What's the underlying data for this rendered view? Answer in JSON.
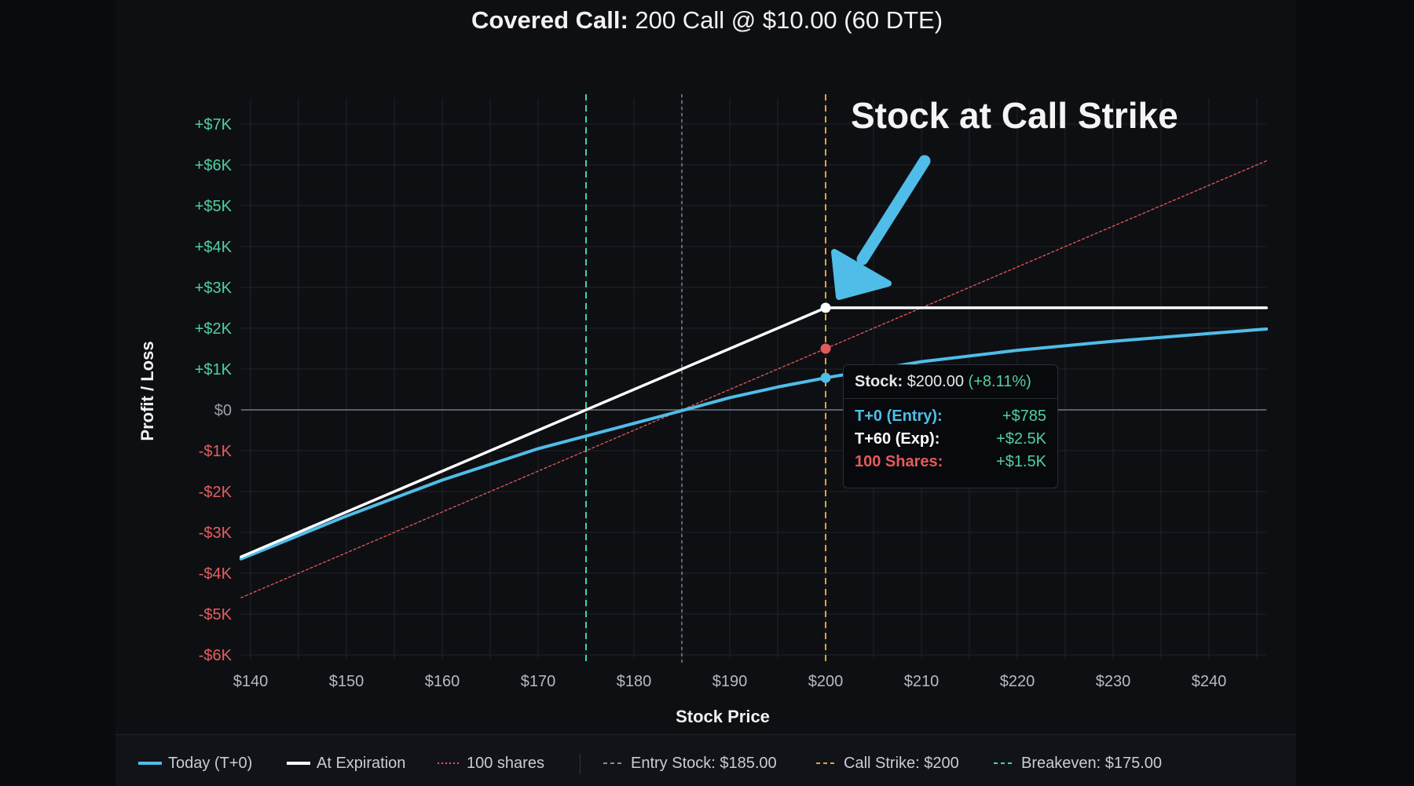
{
  "title": {
    "bold": "Covered Call:",
    "rest": "200 Call @ $10.00 (60 DTE)"
  },
  "annotation": "Stock at Call Strike",
  "colors": {
    "today": "#4fbde8",
    "expiration": "#ffffff",
    "shares": "#e45a5a",
    "entry": "#8a8d94",
    "strike": "#e0a82e",
    "breakeven": "#3dd6b0",
    "positive": "#4fd1a0",
    "negative": "#e55f5f",
    "zero": "#9aa0a6",
    "arrow": "#4fbde8"
  },
  "chart_data": {
    "type": "line",
    "xlabel": "Stock Price",
    "ylabel": "Profit / Loss",
    "xlim": [
      139,
      246
    ],
    "ylim": [
      -6000,
      7000
    ],
    "x_ticks": [
      140,
      150,
      160,
      170,
      180,
      190,
      200,
      210,
      220,
      230,
      240
    ],
    "x_tick_labels": [
      "$140",
      "$150",
      "$160",
      "$170",
      "$180",
      "$190",
      "$200",
      "$210",
      "$220",
      "$230",
      "$240"
    ],
    "y_ticks": [
      7000,
      6000,
      5000,
      4000,
      3000,
      2000,
      1000,
      0,
      -1000,
      -2000,
      -3000,
      -4000,
      -5000,
      -6000
    ],
    "y_tick_labels": [
      "+$7K",
      "+$6K",
      "+$5K",
      "+$4K",
      "+$3K",
      "+$2K",
      "+$1K",
      "$0",
      "-$1K",
      "-$2K",
      "-$3K",
      "-$4K",
      "-$5K",
      "-$6K"
    ],
    "grid": true,
    "series": [
      {
        "name": "Today (T+0)",
        "x": [
          139,
          150,
          160,
          170,
          175,
          180,
          185,
          190,
          195,
          200,
          210,
          220,
          230,
          240,
          246
        ],
        "y": [
          -3650,
          -2600,
          -1720,
          -950,
          -640,
          -330,
          -20,
          300,
          560,
          785,
          1180,
          1460,
          1680,
          1870,
          1980
        ]
      },
      {
        "name": "At Expiration",
        "x": [
          139,
          200,
          246
        ],
        "y": [
          -3600,
          2500,
          2500
        ]
      },
      {
        "name": "100 shares",
        "x": [
          139,
          246
        ],
        "y": [
          -4600,
          6100
        ]
      }
    ],
    "vlines": [
      {
        "name": "Entry Stock: $185.00",
        "x": 185
      },
      {
        "name": "Call Strike: $200",
        "x": 200
      },
      {
        "name": "Breakeven: $175.00",
        "x": 175
      }
    ],
    "markers": [
      {
        "series": "At Expiration",
        "x": 200,
        "y": 2500
      },
      {
        "series": "100 shares",
        "x": 200,
        "y": 1500
      },
      {
        "series": "Today (T+0)",
        "x": 200,
        "y": 785
      }
    ],
    "legend": [
      {
        "label": "Today (T+0)",
        "style": "solid",
        "color": "#4fbde8"
      },
      {
        "label": "At Expiration",
        "style": "solid",
        "color": "#ffffff"
      },
      {
        "label": "100 shares",
        "style": "dotted",
        "color": "#e45a5a"
      },
      {
        "label": "Entry Stock: $185.00",
        "style": "dashed",
        "color": "#8a8d94"
      },
      {
        "label": "Call Strike: $200",
        "style": "dashed",
        "color": "#e0a82e"
      },
      {
        "label": "Breakeven: $175.00",
        "style": "dashed",
        "color": "#3dd6b0"
      }
    ],
    "legend_position": "bottom"
  },
  "tooltip": {
    "stock_label": "Stock:",
    "stock_value": "$200.00",
    "stock_change": "(+8.11%)",
    "rows": [
      {
        "label": "T+0 (Entry):",
        "value": "+$785",
        "color": "#4fbde8"
      },
      {
        "label": "T+60 (Exp):",
        "value": "+$2.5K",
        "color": "#ffffff"
      },
      {
        "label": "100 Shares:",
        "value": "+$1.5K",
        "color": "#e45a5a"
      }
    ]
  }
}
